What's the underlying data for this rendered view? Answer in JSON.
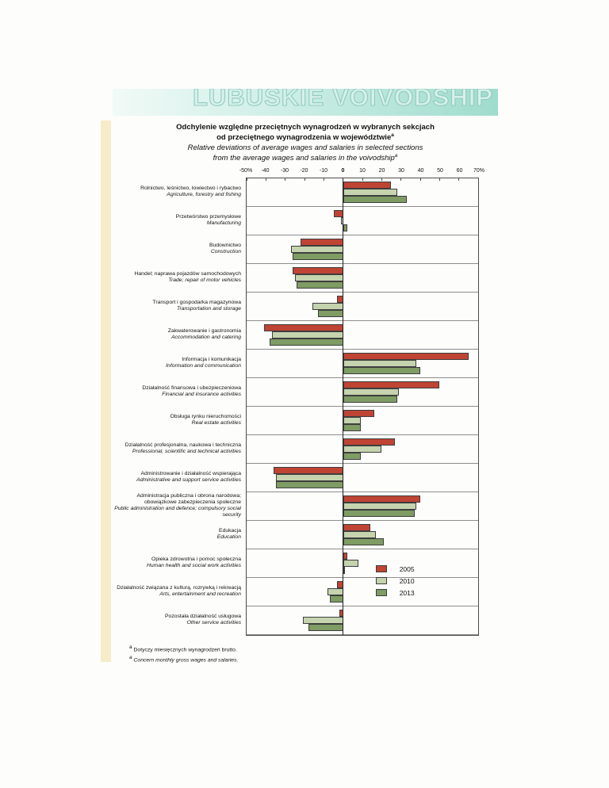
{
  "page": {
    "header": "LUBUSKIE VOIVODSHIP",
    "title": {
      "pl_line1": "Odchylenie względne przeciętnych wynagrodzeń w wybranych sekcjach",
      "pl_line2": "od przeciętnego wynagrodzenia w województwie",
      "en_line1": "Relative deviations of average wages and salaries in selected sections",
      "en_line2": "from the average wages and salaries in the voivodship",
      "superscript": "a"
    },
    "footnotes": {
      "marker": "a",
      "pl": "Dotyczy miesięcznych wynagrodzeń brutto.",
      "en": "Concern monthly gross wages and salaries."
    }
  },
  "chart_data": {
    "type": "bar",
    "orientation": "horizontal",
    "unit": "%",
    "xlim": [
      -50,
      70
    ],
    "tick_values": [
      -50,
      -40,
      -30,
      -20,
      -10,
      0,
      10,
      20,
      30,
      40,
      50,
      60,
      70
    ],
    "tick_labels": [
      "-50%",
      "-40",
      "-30",
      "-20",
      "-10",
      "0",
      "10",
      "20",
      "30",
      "40",
      "50",
      "60",
      "70%"
    ],
    "grid": "horizontal-row-separators",
    "legend_position": "inside-bottom-right",
    "series": [
      {
        "name": "2005",
        "color": "#bf4434"
      },
      {
        "name": "2010",
        "color": "#c5d3ae"
      },
      {
        "name": "2013",
        "color": "#7e9c64"
      }
    ],
    "categories": [
      {
        "pl": "Rolnictwo, leśnictwo, łowiectwo i rybactwo",
        "en": "Agriculture, forestry and fishing",
        "values": [
          25,
          28,
          33
        ]
      },
      {
        "pl": "Przetwórstwo przemysłowe",
        "en": "Manufacturing",
        "values": [
          -5,
          -1,
          2
        ]
      },
      {
        "pl": "Budownictwo",
        "en": "Construction",
        "values": [
          -22,
          -27,
          -26
        ]
      },
      {
        "pl": "Handel; naprawa pojazdów samochodowych",
        "en": "Trade; repair of motor vehicles",
        "values": [
          -26,
          -25,
          -24
        ]
      },
      {
        "pl": "Transport i gospodarka magazynowa",
        "en": "Transportation and storage",
        "values": [
          -3,
          -16,
          -13
        ]
      },
      {
        "pl": "Zakwaterowanie i gastronomia",
        "en": "Accommodation and catering",
        "values": [
          -41,
          -37,
          -38
        ]
      },
      {
        "pl": "Informacja i komunikacja",
        "en": "Information and communication",
        "values": [
          65,
          38,
          40
        ]
      },
      {
        "pl": "Działalność finansowa i ubezpieczeniowa",
        "en": "Financial and insurance activities",
        "values": [
          50,
          29,
          28
        ]
      },
      {
        "pl": "Obsługa rynku nieruchomości",
        "en": "Real estate activities",
        "values": [
          16,
          9,
          9
        ]
      },
      {
        "pl": "Działalność profesjonalna, naukowa i techniczna",
        "en": "Professional, scientific and  technical activities",
        "values": [
          27,
          20,
          9
        ]
      },
      {
        "pl": "Administrowanie i działalność wspierająca",
        "en": "Administrative and support service activities",
        "values": [
          -36,
          -35,
          -35
        ]
      },
      {
        "pl": "Administracja publiczna i obrona narodowa; obowiązkowe zabezpieczenia społeczne",
        "en": "Public administration and defence; compulsory social security",
        "values": [
          40,
          38,
          37
        ]
      },
      {
        "pl": "Edukacja",
        "en": "Education",
        "values": [
          14,
          17,
          21
        ]
      },
      {
        "pl": "Opieka zdrowotna i pomoc społeczna",
        "en": "Human health and social work activities",
        "values": [
          2,
          8,
          1
        ]
      },
      {
        "pl": "Działalność związana z kulturą, rozrywką i rekreacją",
        "en": "Arts, entertainment and recreation",
        "values": [
          -3,
          -8,
          -7
        ]
      },
      {
        "pl": "Pozostała działalność usługowa",
        "en": "Other service activities",
        "values": [
          -2,
          -21,
          -18
        ]
      }
    ]
  }
}
